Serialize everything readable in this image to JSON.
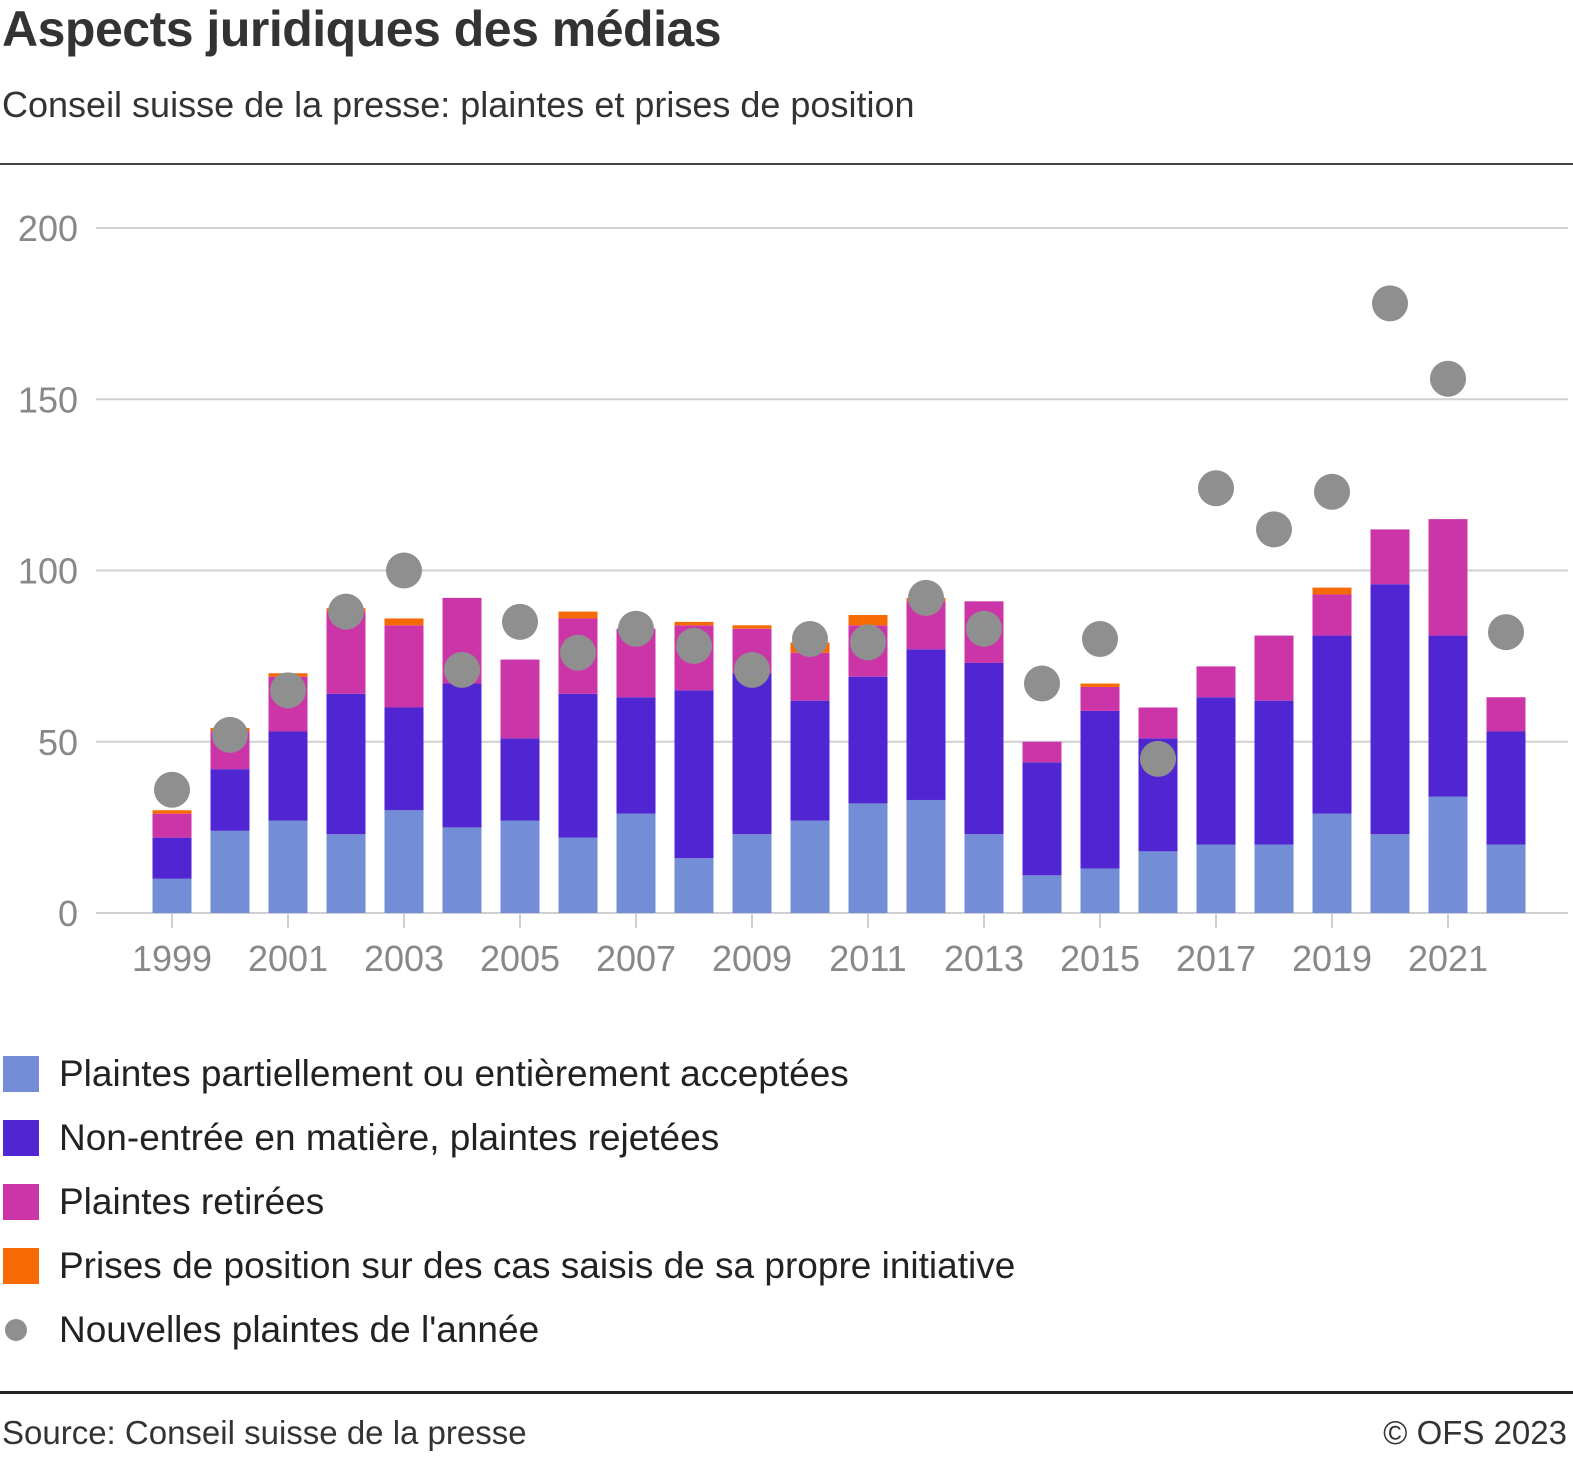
{
  "header": {
    "title": "Aspects juridiques des médias",
    "subtitle": "Conseil suisse de la presse: plaintes et prises de position"
  },
  "footer": {
    "source": "Source: Conseil suisse de la presse",
    "copyright": "© OFS 2023"
  },
  "chart_data": {
    "type": "bar",
    "stacked": true,
    "title": "Aspects juridiques des médias",
    "subtitle": "Conseil suisse de la presse: plaintes et prises de position",
    "xlabel": "",
    "ylabel": "",
    "ylim": [
      0,
      200
    ],
    "yticks": [
      0,
      50,
      100,
      150,
      200
    ],
    "grid": true,
    "legend_position": "bottom",
    "categories": [
      "1999",
      "2000",
      "2001",
      "2002",
      "2003",
      "2004",
      "2005",
      "2006",
      "2007",
      "2008",
      "2009",
      "2010",
      "2011",
      "2012",
      "2013",
      "2014",
      "2015",
      "2016",
      "2017",
      "2018",
      "2019",
      "2020",
      "2021",
      "2022"
    ],
    "xtick_labels": [
      "1999",
      "2001",
      "2003",
      "2005",
      "2007",
      "2009",
      "2011",
      "2013",
      "2015",
      "2017",
      "2019",
      "2021"
    ],
    "series": [
      {
        "name": "Plaintes partiellement ou entièrement acceptées",
        "color": "#738dd6",
        "kind": "bar",
        "values": [
          10,
          24,
          27,
          23,
          30,
          25,
          27,
          22,
          29,
          16,
          23,
          27,
          32,
          33,
          23,
          11,
          13,
          18,
          20,
          20,
          29,
          23,
          34,
          20
        ]
      },
      {
        "name": "Non-entrée en matière, plaintes rejetées",
        "color": "#4f26d1",
        "kind": "bar",
        "values": [
          12,
          18,
          26,
          41,
          30,
          42,
          24,
          42,
          34,
          49,
          47,
          35,
          37,
          44,
          50,
          33,
          46,
          33,
          43,
          42,
          52,
          73,
          47,
          33
        ]
      },
      {
        "name": "Plaintes retirées",
        "color": "#cc35a8",
        "kind": "bar",
        "values": [
          7,
          11,
          16,
          24,
          24,
          25,
          23,
          22,
          20,
          19,
          13,
          14,
          15,
          14,
          18,
          6,
          7,
          9,
          9,
          19,
          12,
          16,
          34,
          10
        ]
      },
      {
        "name": "Prises de position sur des cas saisis de sa propre initiative",
        "color": "#f56a03",
        "kind": "bar",
        "values": [
          1,
          1,
          1,
          1,
          2,
          0,
          0,
          2,
          0,
          1,
          1,
          3,
          3,
          1,
          0,
          0,
          1,
          0,
          0,
          0,
          2,
          0,
          0,
          0
        ]
      },
      {
        "name": "Nouvelles plaintes de l'année",
        "color": "#8f8f8f",
        "kind": "dot",
        "values": [
          36,
          52,
          65,
          88,
          100,
          71,
          85,
          76,
          83,
          78,
          71,
          80,
          79,
          92,
          83,
          67,
          80,
          45,
          124,
          112,
          123,
          178,
          156,
          82
        ]
      }
    ]
  }
}
